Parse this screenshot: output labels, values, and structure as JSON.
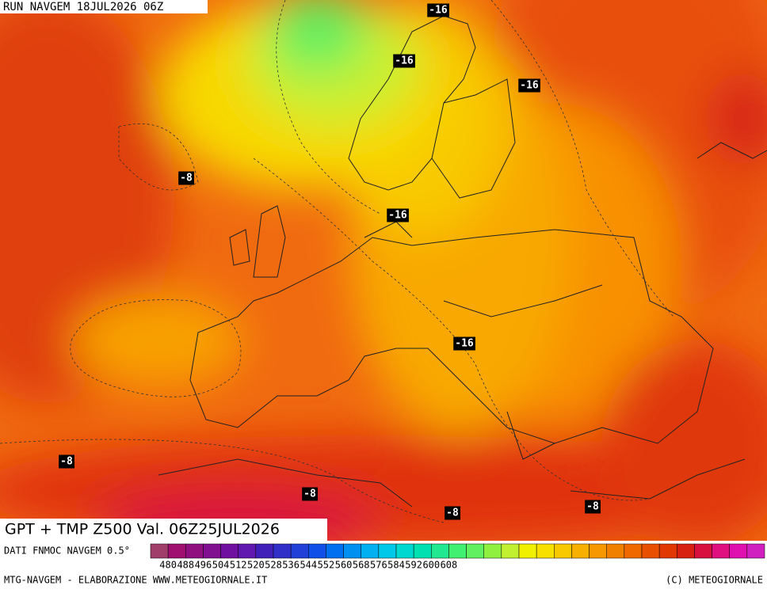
{
  "header": {
    "run": "RUN NAVGEM 18JUL2026 06Z",
    "title": "GPT + TMP Z500 Val. 06Z25JUL2026"
  },
  "map": {
    "isotherm_labels": [
      -16,
      -16,
      -16,
      -8,
      -16,
      -16,
      -8,
      -8,
      -8,
      -8
    ]
  },
  "legend": {
    "label": "DATI FNMOC NAVGEM 0.5°",
    "ticks": [
      480,
      488,
      496,
      504,
      512,
      520,
      528,
      536,
      544,
      552,
      560,
      568,
      576,
      584,
      592,
      600,
      608
    ],
    "colors": [
      "#a0406a",
      "#a01070",
      "#901080",
      "#801090",
      "#7010a0",
      "#6018b0",
      "#4020b8",
      "#3030c8",
      "#2040d8",
      "#1050e8",
      "#0070f0",
      "#0090f0",
      "#00b0f0",
      "#00c8e8",
      "#00d8d0",
      "#00e0b0",
      "#20e890",
      "#40f070",
      "#60f060",
      "#90f040",
      "#c0f030",
      "#f0f000",
      "#f8e000",
      "#f8c800",
      "#f8b000",
      "#f89800",
      "#f08000",
      "#f06800",
      "#e85000",
      "#e03800",
      "#d82010",
      "#d81040",
      "#e01080",
      "#e010b0",
      "#d020c0"
    ]
  },
  "footer": {
    "left": "MTG-NAVGEM - ELABORAZIONE WWW.METEOGIORNALE.IT",
    "right": "(C) METEOGIORNALE"
  }
}
